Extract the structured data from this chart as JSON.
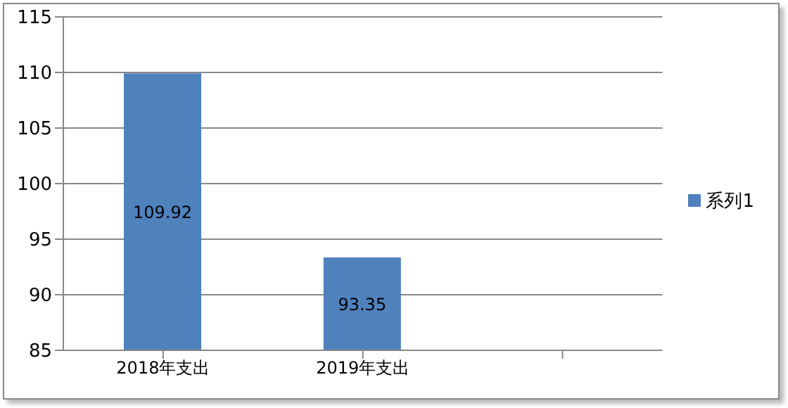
{
  "chart_data": {
    "type": "bar",
    "categories": [
      "2018年支出",
      "2019年支出",
      null
    ],
    "series": [
      {
        "name": "系列1",
        "color": "#4f81bd",
        "values": [
          109.92,
          93.35,
          null
        ]
      }
    ],
    "ylim": [
      85,
      115
    ],
    "yticks": [
      85,
      90,
      95,
      100,
      105,
      110,
      115
    ],
    "grid": "y",
    "legend": "right",
    "data_labels": true
  }
}
